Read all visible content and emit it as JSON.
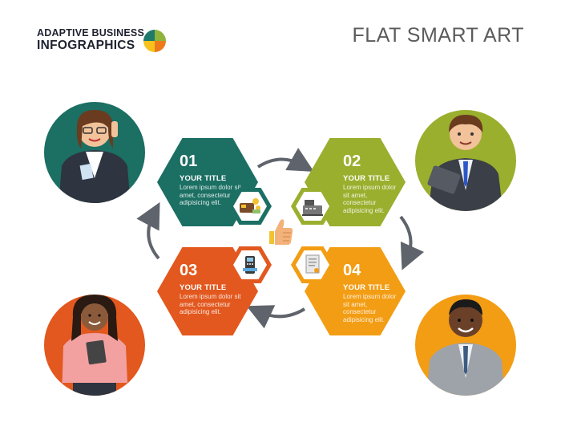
{
  "header": {
    "brand_line1": "ADAPTIVE BUSINESS",
    "brand_line2": "INFOGRAPHICS",
    "title": "FLAT SMART ART"
  },
  "colors": {
    "teal": "#1b6f63",
    "olive": "#9aaf2d",
    "orange_red": "#e2581e",
    "orange": "#f39d14",
    "logo_yellow": "#f7c21b",
    "logo_green": "#8fb33b",
    "logo_teal": "#1f7a6c",
    "logo_orange": "#ef7a1a",
    "arrow": "#5f646c"
  },
  "steps": [
    {
      "number": "01",
      "title": "YOUR TITLE",
      "body": "Lorem ipsum dolor sit amet, consectetur adipisicing elit.",
      "icon": "wallet-money-icon"
    },
    {
      "number": "02",
      "title": "YOUR TITLE",
      "body": "Lorem ipsum dolor sit amet, consectetur adipisicing elit.",
      "icon": "cash-register-icon"
    },
    {
      "number": "03",
      "title": "YOUR TITLE",
      "body": "Lorem ipsum dolor sit amet, consectetur adipisicing elit.",
      "icon": "card-terminal-icon"
    },
    {
      "number": "04",
      "title": "YOUR TITLE",
      "body": "Lorem ipsum dolor sit amet, consectetur adipisicing elit.",
      "icon": "document-icon"
    }
  ],
  "center_icon": "thumbs-up-icon",
  "avatars": [
    {
      "icon": "businesswoman-phone-icon"
    },
    {
      "icon": "businessman-briefcase-icon"
    },
    {
      "icon": "woman-tablet-icon"
    },
    {
      "icon": "businessman-suit-icon"
    }
  ]
}
